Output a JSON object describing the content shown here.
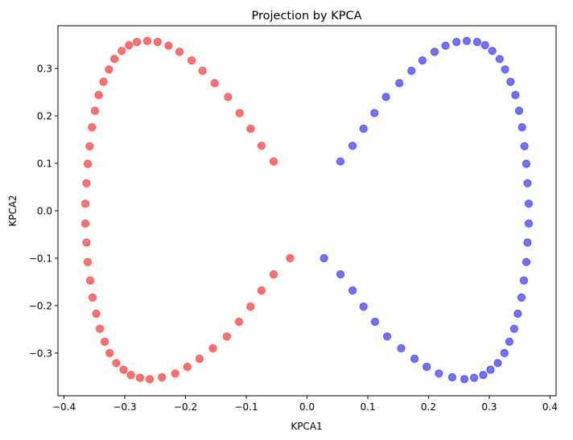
{
  "chart_data": {
    "type": "scatter",
    "title": "Projection by KPCA",
    "xlabel": "KPCA1",
    "ylabel": "KPCA2",
    "xlim": [
      -0.41,
      0.41
    ],
    "ylim": [
      -0.39,
      0.39
    ],
    "xticks": [
      -0.4,
      -0.3,
      -0.2,
      -0.1,
      0.0,
      0.1,
      0.2,
      0.3,
      0.4
    ],
    "xtick_labels": [
      "−0.4",
      "−0.3",
      "−0.2",
      "−0.1",
      "0.0",
      "0.1",
      "0.2",
      "0.3",
      "0.4"
    ],
    "yticks": [
      -0.3,
      -0.2,
      -0.1,
      0.0,
      0.1,
      0.2,
      0.3
    ],
    "ytick_labels": [
      "−0.3",
      "−0.2",
      "−0.1",
      "0.0",
      "0.1",
      "0.2",
      "0.3"
    ],
    "grid": false,
    "series": [
      {
        "color": "#ff0000",
        "alpha": 0.55,
        "points": [
          [
            -0.055,
            0.104
          ],
          [
            -0.075,
            0.137
          ],
          [
            -0.093,
            0.173
          ],
          [
            -0.111,
            0.206
          ],
          [
            -0.13,
            0.24
          ],
          [
            -0.152,
            0.269
          ],
          [
            -0.172,
            0.295
          ],
          [
            -0.19,
            0.317
          ],
          [
            -0.21,
            0.335
          ],
          [
            -0.228,
            0.348
          ],
          [
            -0.246,
            0.356
          ],
          [
            -0.263,
            0.358
          ],
          [
            -0.28,
            0.356
          ],
          [
            -0.293,
            0.349
          ],
          [
            -0.305,
            0.337
          ],
          [
            -0.317,
            0.32
          ],
          [
            -0.326,
            0.298
          ],
          [
            -0.335,
            0.272
          ],
          [
            -0.343,
            0.244
          ],
          [
            -0.349,
            0.211
          ],
          [
            -0.354,
            0.176
          ],
          [
            -0.358,
            0.136
          ],
          [
            -0.361,
            0.099
          ],
          [
            -0.363,
            0.058
          ],
          [
            -0.365,
            0.015
          ],
          [
            -0.365,
            -0.027
          ],
          [
            -0.363,
            -0.067
          ],
          [
            -0.361,
            -0.108
          ],
          [
            -0.357,
            -0.147
          ],
          [
            -0.353,
            -0.183
          ],
          [
            -0.347,
            -0.217
          ],
          [
            -0.341,
            -0.249
          ],
          [
            -0.333,
            -0.276
          ],
          [
            -0.325,
            -0.3
          ],
          [
            -0.314,
            -0.321
          ],
          [
            -0.302,
            -0.335
          ],
          [
            -0.29,
            -0.346
          ],
          [
            -0.275,
            -0.352
          ],
          [
            -0.259,
            -0.355
          ],
          [
            -0.239,
            -0.351
          ],
          [
            -0.217,
            -0.343
          ],
          [
            -0.197,
            -0.329
          ],
          [
            -0.177,
            -0.312
          ],
          [
            -0.155,
            -0.29
          ],
          [
            -0.132,
            -0.265
          ],
          [
            -0.112,
            -0.234
          ],
          [
            -0.093,
            -0.202
          ],
          [
            -0.075,
            -0.168
          ],
          [
            -0.055,
            -0.134
          ],
          [
            -0.028,
            -0.1
          ]
        ]
      },
      {
        "color": "#0000ff",
        "alpha": 0.55,
        "points": [
          [
            0.055,
            0.104
          ],
          [
            0.075,
            0.137
          ],
          [
            0.093,
            0.173
          ],
          [
            0.111,
            0.206
          ],
          [
            0.13,
            0.24
          ],
          [
            0.152,
            0.269
          ],
          [
            0.172,
            0.295
          ],
          [
            0.19,
            0.317
          ],
          [
            0.21,
            0.335
          ],
          [
            0.228,
            0.348
          ],
          [
            0.246,
            0.356
          ],
          [
            0.263,
            0.358
          ],
          [
            0.28,
            0.356
          ],
          [
            0.293,
            0.349
          ],
          [
            0.305,
            0.337
          ],
          [
            0.317,
            0.32
          ],
          [
            0.326,
            0.298
          ],
          [
            0.335,
            0.272
          ],
          [
            0.343,
            0.244
          ],
          [
            0.349,
            0.211
          ],
          [
            0.354,
            0.176
          ],
          [
            0.358,
            0.136
          ],
          [
            0.361,
            0.099
          ],
          [
            0.363,
            0.058
          ],
          [
            0.365,
            0.015
          ],
          [
            0.365,
            -0.027
          ],
          [
            0.363,
            -0.067
          ],
          [
            0.361,
            -0.108
          ],
          [
            0.357,
            -0.147
          ],
          [
            0.353,
            -0.183
          ],
          [
            0.347,
            -0.217
          ],
          [
            0.341,
            -0.249
          ],
          [
            0.333,
            -0.276
          ],
          [
            0.325,
            -0.3
          ],
          [
            0.314,
            -0.321
          ],
          [
            0.302,
            -0.335
          ],
          [
            0.29,
            -0.346
          ],
          [
            0.275,
            -0.352
          ],
          [
            0.259,
            -0.355
          ],
          [
            0.239,
            -0.351
          ],
          [
            0.217,
            -0.343
          ],
          [
            0.197,
            -0.329
          ],
          [
            0.177,
            -0.312
          ],
          [
            0.155,
            -0.29
          ],
          [
            0.132,
            -0.265
          ],
          [
            0.112,
            -0.234
          ],
          [
            0.093,
            -0.202
          ],
          [
            0.075,
            -0.168
          ],
          [
            0.055,
            -0.134
          ],
          [
            0.028,
            -0.1
          ]
        ]
      }
    ]
  }
}
